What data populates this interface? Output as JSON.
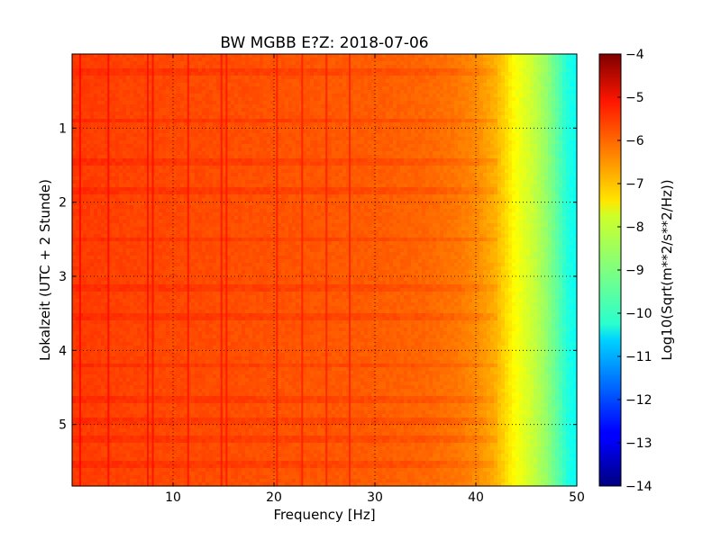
{
  "chart_data": {
    "type": "heatmap",
    "title": "BW MGBB E?Z: 2018-07-06",
    "xlabel": "Frequency [Hz]",
    "ylabel": "Lokalzeit (UTC + 2 Stunde)",
    "xlim": [
      0,
      50
    ],
    "ylim": [
      0,
      5.83
    ],
    "y_inverted": true,
    "x_ticks": [
      10,
      20,
      30,
      40,
      50
    ],
    "x_tick_labels": [
      "10",
      "20",
      "30",
      "40",
      "50"
    ],
    "y_ticks": [
      1,
      2,
      3,
      4,
      5
    ],
    "y_tick_labels": [
      "1",
      "2",
      "3",
      "4",
      "5"
    ],
    "grid": true,
    "colormap": "jet",
    "colorbar": {
      "label": "Log10(Sqrt(m**2/s**2/Hz))",
      "min": -14,
      "max": -4,
      "ticks": [
        -4,
        -5,
        -6,
        -7,
        -8,
        -9,
        -10,
        -11,
        -12,
        -13,
        -14
      ],
      "tick_labels": [
        "−4",
        "−5",
        "−6",
        "−7",
        "−8",
        "−9",
        "−10",
        "−11",
        "−12",
        "−13",
        "−14"
      ]
    },
    "spectral_profile": {
      "frequency_hz": [
        0,
        5,
        10,
        15,
        20,
        25,
        30,
        35,
        38,
        40,
        42,
        43,
        44,
        45,
        46,
        47,
        48,
        49,
        50
      ],
      "log_amplitude": [
        -5.8,
        -5.9,
        -5.95,
        -6.0,
        -6.05,
        -6.1,
        -6.15,
        -6.25,
        -6.4,
        -6.6,
        -7.0,
        -7.4,
        -7.8,
        -8.1,
        -8.4,
        -8.8,
        -9.3,
        -9.9,
        -10.2
      ]
    },
    "vertical_lines_hz": [
      0.8,
      3.6,
      7.5,
      8.0,
      11.5,
      14.8,
      15.3,
      20.3,
      22.8,
      25.2,
      27.5
    ],
    "horizontal_bands_h": [
      0.25,
      0.9,
      1.45,
      1.85,
      2.5,
      3.15,
      3.55,
      4.2,
      4.65,
      4.95,
      5.2,
      5.55
    ]
  }
}
